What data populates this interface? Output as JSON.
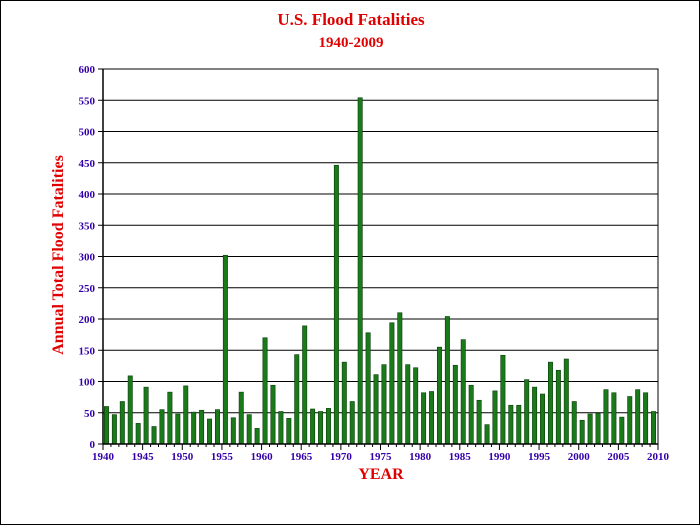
{
  "chart_data": {
    "type": "bar",
    "title": "U.S. Flood Fatalities",
    "subtitle": "1940-2009",
    "xlabel": "YEAR",
    "ylabel": "Annual Total Flood Fatalities",
    "xlim": [
      1940,
      2010
    ],
    "ylim": [
      0,
      600
    ],
    "x_ticks": [
      "1940",
      "1945",
      "1950",
      "1955",
      "1960",
      "1965",
      "1970",
      "1975",
      "1980",
      "1985",
      "1990",
      "1995",
      "2000",
      "2005",
      "2010"
    ],
    "y_ticks": [
      "0",
      "50",
      "100",
      "150",
      "200",
      "250",
      "300",
      "350",
      "400",
      "450",
      "500",
      "550",
      "600"
    ],
    "grid": "horizontal",
    "colors": {
      "bar_fill": "#1a7a1a",
      "bar_stroke": "#0a3d0a",
      "title": "#e00000",
      "axis_label": "#e00000",
      "tick_label": "#3300aa",
      "grid": "#000000"
    },
    "categories": [
      1940,
      1941,
      1942,
      1943,
      1944,
      1945,
      1946,
      1947,
      1948,
      1949,
      1950,
      1951,
      1952,
      1953,
      1954,
      1955,
      1956,
      1957,
      1958,
      1959,
      1960,
      1961,
      1962,
      1963,
      1964,
      1965,
      1966,
      1967,
      1968,
      1969,
      1970,
      1971,
      1972,
      1973,
      1974,
      1975,
      1976,
      1977,
      1978,
      1979,
      1980,
      1981,
      1982,
      1983,
      1984,
      1985,
      1986,
      1987,
      1988,
      1989,
      1990,
      1991,
      1992,
      1993,
      1994,
      1995,
      1996,
      1997,
      1998,
      1999,
      2000,
      2001,
      2002,
      2003,
      2004,
      2005,
      2006,
      2007,
      2008,
      2009
    ],
    "values": [
      60,
      47,
      68,
      109,
      33,
      91,
      28,
      55,
      83,
      48,
      93,
      51,
      54,
      40,
      55,
      302,
      42,
      83,
      47,
      25,
      170,
      94,
      52,
      41,
      143,
      189,
      56,
      52,
      57,
      446,
      131,
      68,
      554,
      178,
      111,
      127,
      194,
      210,
      127,
      122,
      82,
      84,
      155,
      204,
      126,
      167,
      94,
      70,
      31,
      85,
      142,
      62,
      62,
      103,
      91,
      80,
      131,
      118,
      136,
      68,
      38,
      48,
      49,
      87,
      82,
      43,
      76,
      87,
      82,
      52
    ]
  }
}
